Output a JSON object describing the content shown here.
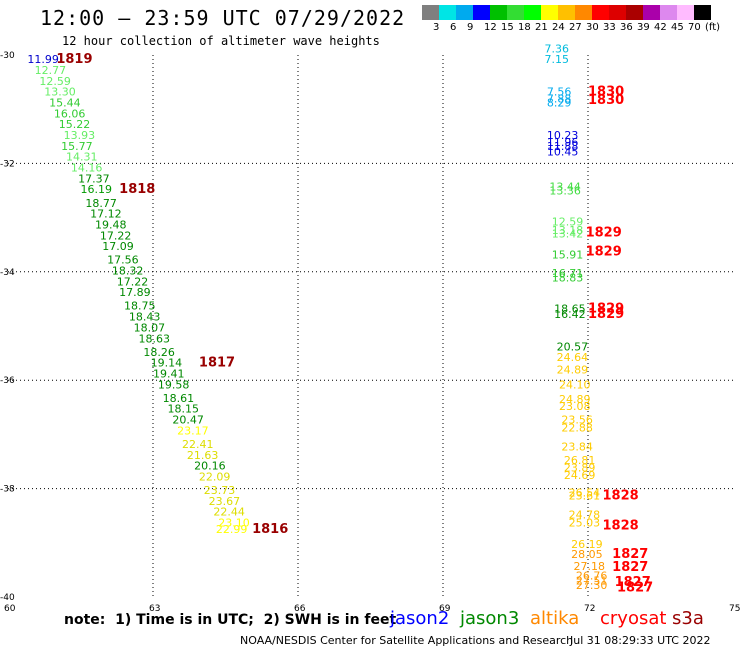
{
  "header": {
    "title": "12:00 – 23:59 UTC 07/29/2022",
    "subtitle": "12 hour collection of altimeter wave heights"
  },
  "colorbar": {
    "colors": [
      "#7f7f7f",
      "#00e5e5",
      "#00aaee",
      "#0000ff",
      "#00c000",
      "#33dd33",
      "#00ff00",
      "#ffff00",
      "#ffc000",
      "#ff8800",
      "#ff0000",
      "#dd0000",
      "#aa0000",
      "#aa00aa",
      "#dd88ee",
      "#ffbbff",
      "#000000"
    ],
    "labels": [
      "3",
      "6",
      "9",
      "12",
      "15",
      "18",
      "21",
      "24",
      "27",
      "30",
      "33",
      "36",
      "39",
      "42",
      "45",
      "70",
      "(ft)"
    ]
  },
  "note": "note:  1) Time is in UTC;  2) SWH is in feet",
  "satellites": [
    {
      "name": "jason2",
      "color": "#0000ff"
    },
    {
      "name": "jason3",
      "color": "#008800"
    },
    {
      "name": "altika",
      "color": "#ff8800"
    },
    {
      "name": "cryosat",
      "color": "#ff0000"
    },
    {
      "name": "s3a",
      "color": "#990000"
    }
  ],
  "footer": {
    "source": "NOAA/NESDIS Center for Satellite Applications and Research",
    "timestamp": "Jul 31 08:29:33 UTC 2022"
  },
  "chart_data": {
    "type": "scatter",
    "title": "12:00 – 23:59 UTC 07/29/2022",
    "xlabel": "",
    "ylabel": "",
    "xlim": [
      60,
      75
    ],
    "ylim": [
      -40,
      -30
    ],
    "xticks": [
      "60",
      "63",
      "66",
      "69",
      "72",
      "75"
    ],
    "yticks": [
      "-30",
      "-32",
      "-34",
      "-36",
      "-38",
      "-40"
    ],
    "grid": true,
    "wave_labels": [
      {
        "x": 60.4,
        "y": -30.15,
        "text": "11.99",
        "color": "#0000cc"
      },
      {
        "x": 60.55,
        "y": -30.35,
        "text": "12.77",
        "color": "#66ee66"
      },
      {
        "x": 60.65,
        "y": -30.55,
        "text": "12.59",
        "color": "#66ee66"
      },
      {
        "x": 60.75,
        "y": -30.75,
        "text": "13.30",
        "color": "#66ee66"
      },
      {
        "x": 60.85,
        "y": -30.95,
        "text": "15.44",
        "color": "#33cc33"
      },
      {
        "x": 60.95,
        "y": -31.15,
        "text": "16.06",
        "color": "#33cc33"
      },
      {
        "x": 61.05,
        "y": -31.35,
        "text": "15.22",
        "color": "#33cc33"
      },
      {
        "x": 61.15,
        "y": -31.55,
        "text": "13.93",
        "color": "#66ee66"
      },
      {
        "x": 61.1,
        "y": -31.75,
        "text": "15.77",
        "color": "#33cc33"
      },
      {
        "x": 61.2,
        "y": -31.95,
        "text": "14.31",
        "color": "#66ee66"
      },
      {
        "x": 61.3,
        "y": -32.15,
        "text": "14.16",
        "color": "#66ee66"
      },
      {
        "x": 61.45,
        "y": -32.35,
        "text": "17.37",
        "color": "#008800"
      },
      {
        "x": 61.5,
        "y": -32.55,
        "text": "16.19",
        "color": "#009900"
      },
      {
        "x": 61.6,
        "y": -32.8,
        "text": "18.77",
        "color": "#008800"
      },
      {
        "x": 61.7,
        "y": -33.0,
        "text": "17.12",
        "color": "#008800"
      },
      {
        "x": 61.8,
        "y": -33.2,
        "text": "19.48",
        "color": "#008800"
      },
      {
        "x": 61.9,
        "y": -33.4,
        "text": "17.22",
        "color": "#008800"
      },
      {
        "x": 61.95,
        "y": -33.6,
        "text": "17.09",
        "color": "#008800"
      },
      {
        "x": 62.05,
        "y": -33.85,
        "text": "17.56",
        "color": "#008800"
      },
      {
        "x": 62.15,
        "y": -34.05,
        "text": "18.32",
        "color": "#008800"
      },
      {
        "x": 62.25,
        "y": -34.25,
        "text": "17.22",
        "color": "#008800"
      },
      {
        "x": 62.3,
        "y": -34.45,
        "text": "17.89",
        "color": "#008800"
      },
      {
        "x": 62.4,
        "y": -34.7,
        "text": "18.75",
        "color": "#008800"
      },
      {
        "x": 62.5,
        "y": -34.9,
        "text": "18.43",
        "color": "#008800"
      },
      {
        "x": 62.6,
        "y": -35.1,
        "text": "18.07",
        "color": "#008800"
      },
      {
        "x": 62.7,
        "y": -35.3,
        "text": "18.63",
        "color": "#008800"
      },
      {
        "x": 62.8,
        "y": -35.55,
        "text": "18.26",
        "color": "#008800"
      },
      {
        "x": 62.95,
        "y": -35.75,
        "text": "19.14",
        "color": "#008800"
      },
      {
        "x": 63.0,
        "y": -35.95,
        "text": "19.41",
        "color": "#008800"
      },
      {
        "x": 63.1,
        "y": -36.15,
        "text": "19.58",
        "color": "#008800"
      },
      {
        "x": 63.2,
        "y": -36.4,
        "text": "18.61",
        "color": "#008800"
      },
      {
        "x": 63.3,
        "y": -36.6,
        "text": "18.15",
        "color": "#008800"
      },
      {
        "x": 63.4,
        "y": -36.8,
        "text": "20.47",
        "color": "#008800"
      },
      {
        "x": 63.5,
        "y": -37.0,
        "text": "23.17",
        "color": "#ffff00"
      },
      {
        "x": 63.6,
        "y": -37.25,
        "text": "22.41",
        "color": "#dddd00"
      },
      {
        "x": 63.7,
        "y": -37.45,
        "text": "21.63",
        "color": "#dddd00"
      },
      {
        "x": 63.85,
        "y": -37.65,
        "text": "20.16",
        "color": "#008800"
      },
      {
        "x": 63.95,
        "y": -37.85,
        "text": "22.09",
        "color": "#dddd00"
      },
      {
        "x": 64.05,
        "y": -38.1,
        "text": "23.73",
        "color": "#dddd00"
      },
      {
        "x": 64.15,
        "y": -38.3,
        "text": "23.67",
        "color": "#dddd00"
      },
      {
        "x": 64.25,
        "y": -38.5,
        "text": "22.44",
        "color": "#dddd00"
      },
      {
        "x": 64.35,
        "y": -38.7,
        "text": "23.10",
        "color": "#ffff00"
      },
      {
        "x": 64.3,
        "y": -38.82,
        "text": "22.99",
        "color": "#ffff00"
      },
      {
        "x": 71.1,
        "y": -29.95,
        "text": "7.36",
        "color": "#00bbdd"
      },
      {
        "x": 71.1,
        "y": -30.15,
        "text": "7.15",
        "color": "#00bbdd"
      },
      {
        "x": 71.15,
        "y": -30.75,
        "text": "7.56",
        "color": "#00aaee"
      },
      {
        "x": 71.15,
        "y": -30.88,
        "text": "7.88",
        "color": "#00aaee"
      },
      {
        "x": 71.15,
        "y": -30.95,
        "text": "8.29",
        "color": "#00aaee"
      },
      {
        "x": 71.15,
        "y": -31.55,
        "text": "10.23",
        "color": "#0000dd"
      },
      {
        "x": 71.15,
        "y": -31.68,
        "text": "11.96",
        "color": "#0000dd"
      },
      {
        "x": 71.15,
        "y": -31.75,
        "text": "11.88",
        "color": "#0000dd"
      },
      {
        "x": 71.15,
        "y": -31.85,
        "text": "10.45",
        "color": "#0000dd"
      },
      {
        "x": 71.2,
        "y": -32.5,
        "text": "13.44",
        "color": "#44dd44"
      },
      {
        "x": 71.2,
        "y": -32.57,
        "text": "13.36",
        "color": "#44dd44"
      },
      {
        "x": 71.25,
        "y": -33.15,
        "text": "12.59",
        "color": "#66ee66"
      },
      {
        "x": 71.25,
        "y": -33.3,
        "text": "13.18",
        "color": "#66ee66"
      },
      {
        "x": 71.25,
        "y": -33.37,
        "text": "13.42",
        "color": "#66ee66"
      },
      {
        "x": 71.25,
        "y": -33.75,
        "text": "15.91",
        "color": "#33cc33"
      },
      {
        "x": 71.25,
        "y": -34.1,
        "text": "16.71",
        "color": "#33cc33"
      },
      {
        "x": 71.25,
        "y": -34.18,
        "text": "18.83",
        "color": "#33cc33"
      },
      {
        "x": 71.3,
        "y": -34.75,
        "text": "18.65",
        "color": "#008800"
      },
      {
        "x": 71.3,
        "y": -34.85,
        "text": "16.42",
        "color": "#008800"
      },
      {
        "x": 71.35,
        "y": -35.45,
        "text": "20.57",
        "color": "#008800"
      },
      {
        "x": 71.35,
        "y": -35.65,
        "text": "24.64",
        "color": "#ffcc00"
      },
      {
        "x": 71.35,
        "y": -35.88,
        "text": "24.89",
        "color": "#ffcc00"
      },
      {
        "x": 71.4,
        "y": -36.15,
        "text": "24.10",
        "color": "#ffcc00"
      },
      {
        "x": 71.4,
        "y": -36.42,
        "text": "24.89",
        "color": "#ffcc00"
      },
      {
        "x": 71.4,
        "y": -36.55,
        "text": "23.08",
        "color": "#ffcc00"
      },
      {
        "x": 71.45,
        "y": -36.8,
        "text": "23.56",
        "color": "#ffcc00"
      },
      {
        "x": 71.45,
        "y": -36.95,
        "text": "22.88",
        "color": "#ffcc00"
      },
      {
        "x": 71.45,
        "y": -37.3,
        "text": "23.84",
        "color": "#ffcc00"
      },
      {
        "x": 71.5,
        "y": -37.55,
        "text": "26.81",
        "color": "#ffcc00"
      },
      {
        "x": 71.5,
        "y": -37.68,
        "text": "23.89",
        "color": "#ffcc00"
      },
      {
        "x": 71.5,
        "y": -37.82,
        "text": "24.69",
        "color": "#ffcc00"
      },
      {
        "x": 71.6,
        "y": -38.15,
        "text": "26.54",
        "color": "#ffcc00"
      },
      {
        "x": 71.6,
        "y": -38.2,
        "text": "23.61",
        "color": "#ffcc00"
      },
      {
        "x": 71.6,
        "y": -38.55,
        "text": "24.78",
        "color": "#ffcc00"
      },
      {
        "x": 71.6,
        "y": -38.7,
        "text": "25.03",
        "color": "#ffcc00"
      },
      {
        "x": 71.65,
        "y": -39.1,
        "text": "26.19",
        "color": "#ffcc00"
      },
      {
        "x": 71.65,
        "y": -39.28,
        "text": "28.05",
        "color": "#ff9900"
      },
      {
        "x": 71.7,
        "y": -39.5,
        "text": "27.18",
        "color": "#ff9900"
      },
      {
        "x": 71.75,
        "y": -39.68,
        "text": "26.76",
        "color": "#ff9900"
      },
      {
        "x": 71.75,
        "y": -39.77,
        "text": "27.51",
        "color": "#ff9900"
      },
      {
        "x": 71.75,
        "y": -39.85,
        "text": "27.30",
        "color": "#ff9900"
      }
    ],
    "pass_labels": [
      {
        "x": 61.0,
        "y": -30.15,
        "text": "1819",
        "color": "#990000"
      },
      {
        "x": 62.3,
        "y": -32.55,
        "text": "1818",
        "color": "#990000"
      },
      {
        "x": 63.95,
        "y": -35.75,
        "text": "1817",
        "color": "#990000"
      },
      {
        "x": 65.05,
        "y": -38.82,
        "text": "1816",
        "color": "#990000"
      },
      {
        "x": 72.0,
        "y": -30.75,
        "text": "1830",
        "color": "#ff0000"
      },
      {
        "x": 72.0,
        "y": -30.9,
        "text": "1830",
        "color": "#ff0000"
      },
      {
        "x": 71.95,
        "y": -33.35,
        "text": "1829",
        "color": "#ff0000"
      },
      {
        "x": 71.95,
        "y": -33.7,
        "text": "1829",
        "color": "#ff0000"
      },
      {
        "x": 72.0,
        "y": -34.75,
        "text": "1829",
        "color": "#ff0000"
      },
      {
        "x": 72.0,
        "y": -34.85,
        "text": "1829",
        "color": "#ff0000"
      },
      {
        "x": 72.3,
        "y": -38.2,
        "text": "1828",
        "color": "#ff0000"
      },
      {
        "x": 72.3,
        "y": -38.75,
        "text": "1828",
        "color": "#ff0000"
      },
      {
        "x": 72.5,
        "y": -39.28,
        "text": "1827",
        "color": "#ff0000"
      },
      {
        "x": 72.5,
        "y": -39.52,
        "text": "1827",
        "color": "#ff0000"
      },
      {
        "x": 72.55,
        "y": -39.8,
        "text": "1827",
        "color": "#ff0000"
      },
      {
        "x": 72.6,
        "y": -39.9,
        "text": "1827",
        "color": "#ff0000"
      }
    ]
  }
}
